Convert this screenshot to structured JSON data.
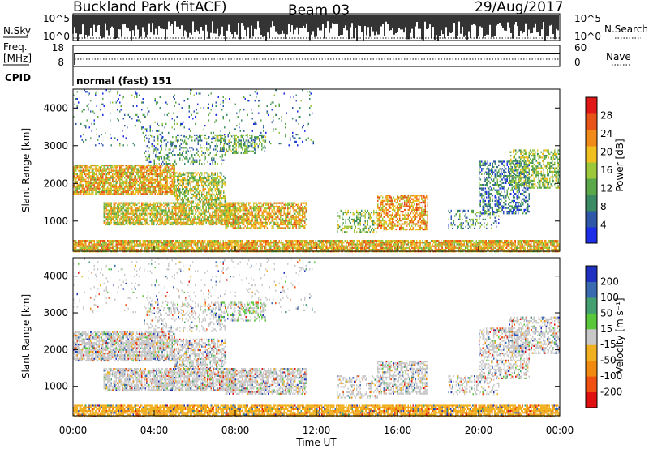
{
  "header": {
    "site": "Buckland Park (fitACF)",
    "beam": "Beam 03",
    "date": "29/Aug/2017"
  },
  "noise_panel": {
    "left_label": "N.Sky",
    "right_label": "N.Search",
    "ticks": [
      "10^5",
      "10^0"
    ]
  },
  "freq_panel": {
    "left_label_line1": "Freq.",
    "left_label_line2": "[MHz]",
    "left_ticks": [
      "18",
      "8"
    ],
    "right_label": "Nave",
    "right_ticks": [
      "60",
      "0"
    ],
    "cpid_label": "CPID",
    "cpid_text": "normal (fast) 151"
  },
  "x_axis": {
    "label": "Time UT",
    "ticks": [
      "00:00",
      "04:00",
      "08:00",
      "12:00",
      "16:00",
      "20:00",
      "00:00"
    ]
  },
  "colors": {
    "power_scale": [
      "#1c2ee8",
      "#2f58a8",
      "#3a8a64",
      "#5aa84a",
      "#9cc83a",
      "#f0c020",
      "#f08a18",
      "#e85418",
      "#e01818"
    ],
    "velocity_scale": [
      "#2030c0",
      "#3a6ab0",
      "#44a070",
      "#5ac83a",
      "#c8c8c8",
      "#f0b020",
      "#f08a10",
      "#f05010",
      "#e01010"
    ]
  },
  "chart_data": [
    {
      "type": "heatmap",
      "name": "power",
      "ylabel": "Slant Range [km]",
      "xlabel": "",
      "ylim": [
        200,
        4500
      ],
      "xlim": [
        0,
        24
      ],
      "y_ticks": [
        "1000",
        "2000",
        "3000",
        "4000"
      ],
      "colorbar": {
        "label": "Power [dB]",
        "ticks": [
          "4",
          "8",
          "12",
          "16",
          "20",
          "24",
          "28"
        ],
        "range": [
          0,
          32
        ]
      },
      "regions": [
        {
          "t0": 0.0,
          "t1": 5.0,
          "r0": 1700,
          "r1": 2500,
          "v": 20,
          "density": 0.8
        },
        {
          "t0": 5.0,
          "t1": 7.5,
          "r0": 1500,
          "r1": 2300,
          "v": 16,
          "density": 0.6
        },
        {
          "t0": 1.5,
          "t1": 8.0,
          "r0": 900,
          "r1": 1500,
          "v": 18,
          "density": 0.75
        },
        {
          "t0": 7.5,
          "t1": 11.5,
          "r0": 800,
          "r1": 1500,
          "v": 20,
          "density": 0.7
        },
        {
          "t0": 3.5,
          "t1": 7.5,
          "r0": 2500,
          "r1": 3300,
          "v": 10,
          "density": 0.25
        },
        {
          "t0": 7.0,
          "t1": 9.5,
          "r0": 2800,
          "r1": 3300,
          "v": 12,
          "density": 0.4
        },
        {
          "t0": 13.0,
          "t1": 15.0,
          "r0": 700,
          "r1": 1300,
          "v": 14,
          "density": 0.35
        },
        {
          "t0": 15.0,
          "t1": 17.5,
          "r0": 800,
          "r1": 1700,
          "v": 22,
          "density": 0.6
        },
        {
          "t0": 18.5,
          "t1": 21.0,
          "r0": 800,
          "r1": 1300,
          "v": 10,
          "density": 0.3
        },
        {
          "t0": 20.0,
          "t1": 22.5,
          "r0": 1200,
          "r1": 2600,
          "v": 8,
          "density": 0.45
        },
        {
          "t0": 21.5,
          "t1": 24.0,
          "r0": 1900,
          "r1": 2900,
          "v": 14,
          "density": 0.5
        },
        {
          "t0": 0.0,
          "t1": 24.0,
          "r0": 200,
          "r1": 500,
          "v": 20,
          "density": 0.85
        },
        {
          "t0": 0.0,
          "t1": 12.0,
          "r0": 3000,
          "r1": 4500,
          "v": 8,
          "density": 0.06
        }
      ]
    },
    {
      "type": "heatmap",
      "name": "velocity",
      "ylabel": "Slant Range [km]",
      "xlabel": "Time UT",
      "ylim": [
        200,
        4500
      ],
      "xlim": [
        0,
        24
      ],
      "y_ticks": [
        "1000",
        "2000",
        "3000",
        "4000"
      ],
      "colorbar": {
        "label": "Velocity [m s⁻¹]",
        "ticks": [
          "200",
          "100",
          "50",
          "15",
          "-15",
          "-50",
          "-100",
          "-200"
        ],
        "range": [
          -250,
          250
        ]
      },
      "regions": [
        {
          "t0": 0.0,
          "t1": 5.0,
          "r0": 1700,
          "r1": 2500,
          "v": 0,
          "density": 0.8
        },
        {
          "t0": 5.0,
          "t1": 7.5,
          "r0": 1500,
          "r1": 2300,
          "v": 0,
          "density": 0.6
        },
        {
          "t0": 1.5,
          "t1": 8.0,
          "r0": 900,
          "r1": 1500,
          "v": 0,
          "density": 0.75
        },
        {
          "t0": 7.5,
          "t1": 11.5,
          "r0": 800,
          "r1": 1500,
          "v": 0,
          "density": 0.7
        },
        {
          "t0": 3.5,
          "t1": 7.5,
          "r0": 2500,
          "r1": 3300,
          "v": 0,
          "density": 0.25
        },
        {
          "t0": 7.0,
          "t1": 9.5,
          "r0": 2800,
          "r1": 3300,
          "v": 20,
          "density": 0.4
        },
        {
          "t0": 13.0,
          "t1": 15.0,
          "r0": 700,
          "r1": 1300,
          "v": 0,
          "density": 0.35
        },
        {
          "t0": 15.0,
          "t1": 17.5,
          "r0": 800,
          "r1": 1700,
          "v": 0,
          "density": 0.6
        },
        {
          "t0": 18.5,
          "t1": 21.0,
          "r0": 800,
          "r1": 1300,
          "v": 0,
          "density": 0.3
        },
        {
          "t0": 20.0,
          "t1": 22.5,
          "r0": 1200,
          "r1": 2600,
          "v": 0,
          "density": 0.45
        },
        {
          "t0": 21.5,
          "t1": 24.0,
          "r0": 1900,
          "r1": 2900,
          "v": 0,
          "density": 0.5
        },
        {
          "t0": 0.0,
          "t1": 24.0,
          "r0": 200,
          "r1": 500,
          "v": -60,
          "density": 0.85
        },
        {
          "t0": 0.0,
          "t1": 12.0,
          "r0": 3000,
          "r1": 4500,
          "v": 0,
          "density": 0.06
        }
      ]
    }
  ]
}
